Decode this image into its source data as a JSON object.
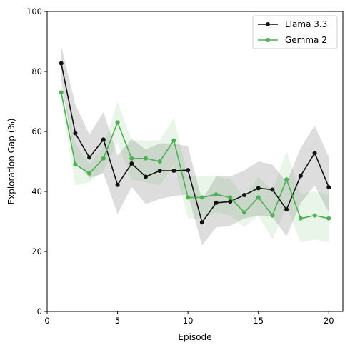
{
  "chart_data": {
    "type": "line",
    "title": "",
    "xlabel": "Episode",
    "ylabel": "Exploration Gap (%)",
    "xlim": [
      0,
      21
    ],
    "ylim": [
      0,
      100
    ],
    "xticks": [
      0,
      5,
      10,
      15,
      20
    ],
    "yticks": [
      0,
      20,
      40,
      60,
      80,
      100
    ],
    "grid": false,
    "legend_position": "top-right",
    "x": [
      1,
      2,
      3,
      4,
      5,
      6,
      7,
      8,
      9,
      10,
      11,
      12,
      13,
      14,
      15,
      16,
      17,
      18,
      19,
      20
    ],
    "series": [
      {
        "name": "Llama 3.3",
        "color": "#111111",
        "values": [
          82.7,
          59.4,
          51.3,
          57.3,
          42.2,
          49.3,
          44.9,
          46.9,
          46.9,
          47.1,
          29.7,
          36.2,
          36.6,
          38.8,
          41.1,
          40.6,
          34.0,
          45.2,
          52.8,
          41.4
        ],
        "lower": [
          77.0,
          50.0,
          44.5,
          46.0,
          32.5,
          41.5,
          35.8,
          37.5,
          38.5,
          39.0,
          22.0,
          28.0,
          28.5,
          31.0,
          32.0,
          31.5,
          25.0,
          36.0,
          42.0,
          33.0
        ],
        "upper": [
          88.5,
          69.0,
          59.0,
          66.5,
          52.0,
          57.5,
          54.0,
          56.0,
          56.0,
          55.0,
          37.0,
          45.0,
          45.0,
          47.0,
          50.0,
          49.0,
          43.0,
          54.5,
          62.0,
          51.5
        ]
      },
      {
        "name": "Gemma 2",
        "color": "#4caf50",
        "values": [
          73.0,
          49.0,
          46.0,
          51.0,
          63.0,
          51.0,
          51.0,
          50.0,
          57.0,
          38.0,
          38.0,
          39.0,
          38.0,
          33.0,
          38.0,
          32.0,
          44.0,
          31.0,
          32.0,
          31.0
        ],
        "lower": [
          70.0,
          42.0,
          43.0,
          47.0,
          56.0,
          44.0,
          43.0,
          42.0,
          49.0,
          31.0,
          31.0,
          33.0,
          32.0,
          28.0,
          32.0,
          24.0,
          35.0,
          23.0,
          24.0,
          23.0
        ],
        "upper": [
          76.0,
          56.0,
          49.0,
          55.0,
          70.0,
          57.0,
          57.0,
          57.0,
          64.5,
          45.0,
          45.0,
          45.0,
          44.0,
          38.0,
          45.0,
          40.0,
          53.5,
          39.0,
          40.0,
          39.0
        ]
      }
    ]
  }
}
